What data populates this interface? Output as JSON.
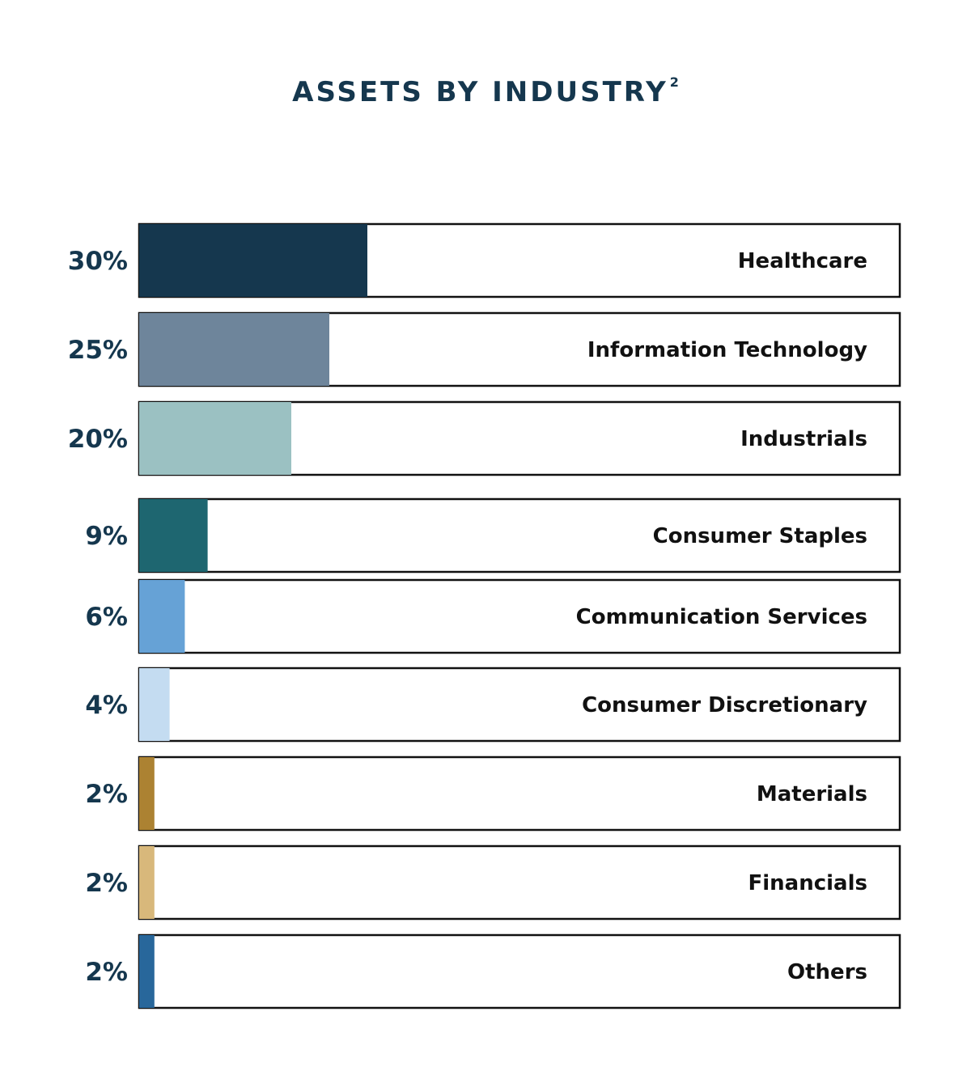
{
  "chart_data": {
    "type": "bar",
    "orientation": "horizontal",
    "title": "ASSETS BY INDUSTRY",
    "title_superscript": "2",
    "xlim": [
      0,
      100
    ],
    "value_unit": "%",
    "categories": [
      "Healthcare",
      "Information Technology",
      "Industrials",
      "Consumer Staples",
      "Communication Services",
      "Consumer Discretionary",
      "Materials",
      "Financials",
      "Others"
    ],
    "values": [
      30,
      25,
      20,
      9,
      6,
      4,
      2,
      2,
      2
    ],
    "value_labels": [
      "30%",
      "25%",
      "20%",
      "9%",
      "6%",
      "4%",
      "2%",
      "2%",
      "2%"
    ],
    "colors": [
      "#15374e",
      "#6e859b",
      "#9bc1c2",
      "#1e6670",
      "#66a2d6",
      "#c4dcf1",
      "#ac8232",
      "#d8b87b",
      "#28679b"
    ],
    "grid": false,
    "legend": "none"
  }
}
